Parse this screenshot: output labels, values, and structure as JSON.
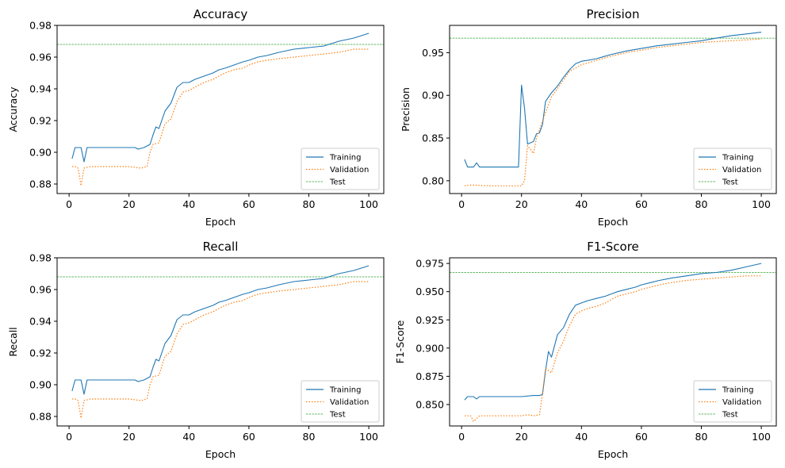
{
  "colors": {
    "training": "#1f77b4",
    "validation": "#ff7f0e",
    "test": "#2ca02c"
  },
  "chart_data": [
    {
      "type": "line",
      "title": "Accuracy",
      "xlabel": "Epoch",
      "ylabel": "Accuracy",
      "xlim": [
        -4,
        105
      ],
      "ylim": [
        0.874,
        0.98
      ],
      "xticks": [
        0,
        20,
        40,
        60,
        80,
        100
      ],
      "yticks": [
        0.88,
        0.9,
        0.92,
        0.94,
        0.96,
        0.98
      ],
      "ytick_labels": [
        "0.88",
        "0.90",
        "0.92",
        "0.94",
        "0.96",
        "0.98"
      ],
      "legend": {
        "position": "lower-right",
        "entries": [
          "Training",
          "Validation",
          "Test"
        ]
      },
      "test_value": 0.968,
      "series": [
        {
          "name": "Training",
          "style": "solid",
          "x": [
            1,
            2,
            4,
            5,
            6,
            22,
            23,
            25,
            27,
            28,
            29,
            30,
            32,
            34,
            36,
            38,
            40,
            42,
            45,
            48,
            50,
            52,
            55,
            58,
            60,
            63,
            66,
            70,
            75,
            80,
            85,
            90,
            95,
            100
          ],
          "y": [
            0.896,
            0.903,
            0.903,
            0.894,
            0.903,
            0.903,
            0.902,
            0.903,
            0.905,
            0.911,
            0.916,
            0.915,
            0.926,
            0.931,
            0.941,
            0.944,
            0.944,
            0.946,
            0.948,
            0.95,
            0.952,
            0.953,
            0.955,
            0.957,
            0.958,
            0.96,
            0.961,
            0.963,
            0.965,
            0.966,
            0.967,
            0.97,
            0.972,
            0.975
          ]
        },
        {
          "name": "Validation",
          "style": "dotted",
          "x": [
            1,
            2,
            3,
            4,
            5,
            7,
            20,
            24,
            26,
            27,
            28,
            30,
            32,
            34,
            36,
            38,
            40,
            42,
            45,
            48,
            50,
            52,
            55,
            58,
            60,
            63,
            66,
            70,
            75,
            80,
            85,
            90,
            95,
            100
          ],
          "y": [
            0.891,
            0.891,
            0.89,
            0.879,
            0.89,
            0.891,
            0.891,
            0.89,
            0.891,
            0.9,
            0.905,
            0.906,
            0.918,
            0.921,
            0.932,
            0.938,
            0.939,
            0.941,
            0.944,
            0.946,
            0.948,
            0.95,
            0.952,
            0.953,
            0.955,
            0.957,
            0.958,
            0.959,
            0.96,
            0.961,
            0.962,
            0.963,
            0.965,
            0.965
          ]
        }
      ]
    },
    {
      "type": "line",
      "title": "Precision",
      "xlabel": "Epoch",
      "ylabel": "Precision",
      "xlim": [
        -4,
        105
      ],
      "ylim": [
        0.785,
        0.982
      ],
      "xticks": [
        0,
        20,
        40,
        60,
        80,
        100
      ],
      "yticks": [
        0.8,
        0.85,
        0.9,
        0.95
      ],
      "ytick_labels": [
        "0.80",
        "0.85",
        "0.90",
        "0.95"
      ],
      "legend": {
        "position": "lower-right",
        "entries": [
          "Training",
          "Validation",
          "Test"
        ]
      },
      "test_value": 0.967,
      "series": [
        {
          "name": "Training",
          "style": "solid",
          "x": [
            1,
            2,
            4,
            5,
            6,
            19,
            20,
            21,
            22,
            24,
            25,
            26,
            27,
            28,
            30,
            32,
            34,
            36,
            38,
            40,
            42,
            45,
            48,
            50,
            55,
            60,
            65,
            70,
            75,
            80,
            85,
            90,
            95,
            100
          ],
          "y": [
            0.825,
            0.816,
            0.816,
            0.821,
            0.816,
            0.816,
            0.912,
            0.885,
            0.843,
            0.846,
            0.855,
            0.856,
            0.866,
            0.893,
            0.903,
            0.911,
            0.921,
            0.93,
            0.937,
            0.94,
            0.941,
            0.943,
            0.946,
            0.948,
            0.952,
            0.955,
            0.958,
            0.96,
            0.962,
            0.964,
            0.967,
            0.97,
            0.972,
            0.974
          ]
        },
        {
          "name": "Validation",
          "style": "dotted",
          "x": [
            1,
            3,
            10,
            19,
            20,
            21,
            22,
            24,
            25,
            26,
            28,
            30,
            32,
            34,
            36,
            38,
            40,
            42,
            45,
            48,
            50,
            55,
            60,
            65,
            70,
            75,
            80,
            85,
            90,
            95,
            100
          ],
          "y": [
            0.794,
            0.795,
            0.794,
            0.794,
            0.794,
            0.8,
            0.841,
            0.832,
            0.85,
            0.86,
            0.88,
            0.898,
            0.908,
            0.918,
            0.928,
            0.932,
            0.936,
            0.938,
            0.941,
            0.944,
            0.946,
            0.95,
            0.953,
            0.956,
            0.958,
            0.96,
            0.962,
            0.963,
            0.964,
            0.965,
            0.966
          ]
        }
      ]
    },
    {
      "type": "line",
      "title": "Recall",
      "xlabel": "Epoch",
      "ylabel": "Recall",
      "xlim": [
        -4,
        105
      ],
      "ylim": [
        0.874,
        0.98
      ],
      "xticks": [
        0,
        20,
        40,
        60,
        80,
        100
      ],
      "yticks": [
        0.88,
        0.9,
        0.92,
        0.94,
        0.96,
        0.98
      ],
      "ytick_labels": [
        "0.88",
        "0.90",
        "0.92",
        "0.94",
        "0.96",
        "0.98"
      ],
      "legend": {
        "position": "lower-right",
        "entries": [
          "Training",
          "Validation",
          "Test"
        ]
      },
      "test_value": 0.968,
      "series": [
        {
          "name": "Training",
          "style": "solid",
          "x": [
            1,
            2,
            4,
            5,
            6,
            22,
            23,
            25,
            27,
            28,
            29,
            30,
            32,
            34,
            36,
            38,
            40,
            42,
            45,
            48,
            50,
            52,
            55,
            58,
            60,
            63,
            66,
            70,
            75,
            80,
            85,
            90,
            95,
            100
          ],
          "y": [
            0.896,
            0.903,
            0.903,
            0.894,
            0.903,
            0.903,
            0.902,
            0.903,
            0.905,
            0.911,
            0.916,
            0.915,
            0.926,
            0.931,
            0.941,
            0.944,
            0.944,
            0.946,
            0.948,
            0.95,
            0.952,
            0.953,
            0.955,
            0.957,
            0.958,
            0.96,
            0.961,
            0.963,
            0.965,
            0.966,
            0.967,
            0.97,
            0.972,
            0.975
          ]
        },
        {
          "name": "Validation",
          "style": "dotted",
          "x": [
            1,
            2,
            3,
            4,
            5,
            7,
            20,
            24,
            26,
            27,
            28,
            30,
            32,
            34,
            36,
            38,
            40,
            42,
            45,
            48,
            50,
            52,
            55,
            58,
            60,
            63,
            66,
            70,
            75,
            80,
            85,
            90,
            95,
            100
          ],
          "y": [
            0.891,
            0.891,
            0.89,
            0.879,
            0.89,
            0.891,
            0.891,
            0.89,
            0.891,
            0.9,
            0.905,
            0.906,
            0.918,
            0.921,
            0.932,
            0.938,
            0.939,
            0.941,
            0.944,
            0.946,
            0.948,
            0.95,
            0.952,
            0.953,
            0.955,
            0.957,
            0.958,
            0.959,
            0.96,
            0.961,
            0.962,
            0.963,
            0.965,
            0.965
          ]
        }
      ]
    },
    {
      "type": "line",
      "title": "F1-Score",
      "xlabel": "Epoch",
      "ylabel": "F1-Score",
      "xlim": [
        -4,
        105
      ],
      "ylim": [
        0.831,
        0.98
      ],
      "xticks": [
        0,
        20,
        40,
        60,
        80,
        100
      ],
      "yticks": [
        0.85,
        0.875,
        0.9,
        0.925,
        0.95,
        0.975
      ],
      "ytick_labels": [
        "0.850",
        "0.875",
        "0.900",
        "0.925",
        "0.950",
        "0.975"
      ],
      "legend": {
        "position": "lower-right",
        "entries": [
          "Training",
          "Validation",
          "Test"
        ]
      },
      "test_value": 0.967,
      "series": [
        {
          "name": "Training",
          "style": "solid",
          "x": [
            1,
            2,
            4,
            5,
            6,
            20,
            24,
            26,
            27,
            28,
            29,
            30,
            32,
            34,
            36,
            38,
            40,
            42,
            45,
            48,
            50,
            52,
            55,
            58,
            60,
            63,
            66,
            70,
            75,
            80,
            85,
            90,
            95,
            100
          ],
          "y": [
            0.854,
            0.857,
            0.857,
            0.855,
            0.857,
            0.857,
            0.858,
            0.858,
            0.859,
            0.88,
            0.897,
            0.892,
            0.912,
            0.918,
            0.93,
            0.938,
            0.94,
            0.942,
            0.944,
            0.946,
            0.948,
            0.95,
            0.952,
            0.954,
            0.956,
            0.958,
            0.96,
            0.962,
            0.964,
            0.966,
            0.967,
            0.969,
            0.972,
            0.975
          ]
        },
        {
          "name": "Validation",
          "style": "dotted",
          "x": [
            1,
            3,
            4,
            6,
            20,
            22,
            24,
            26,
            27,
            28,
            30,
            32,
            34,
            36,
            38,
            40,
            42,
            45,
            48,
            50,
            52,
            55,
            58,
            60,
            63,
            66,
            70,
            75,
            80,
            85,
            90,
            95,
            100
          ],
          "y": [
            0.84,
            0.84,
            0.835,
            0.84,
            0.84,
            0.841,
            0.84,
            0.841,
            0.86,
            0.882,
            0.878,
            0.896,
            0.906,
            0.92,
            0.93,
            0.933,
            0.935,
            0.937,
            0.94,
            0.943,
            0.946,
            0.948,
            0.95,
            0.952,
            0.954,
            0.956,
            0.958,
            0.96,
            0.961,
            0.962,
            0.963,
            0.964,
            0.964
          ]
        }
      ]
    }
  ]
}
